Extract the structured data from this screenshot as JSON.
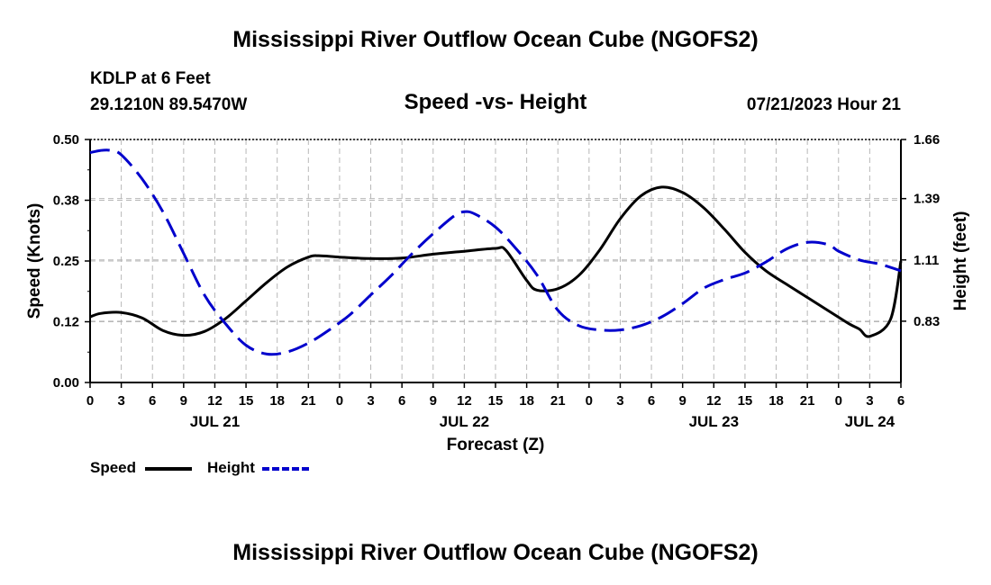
{
  "header": {
    "title": "Mississippi River Outflow Ocean Cube (NGOFS2)",
    "station": "KDLP at 6 Feet",
    "coords": "29.1210N  89.5470W",
    "subtitle": "Speed -vs- Height",
    "datetime": "07/21/2023 Hour 21"
  },
  "legend": {
    "speed_label": "Speed",
    "height_label": "Height"
  },
  "footer": {
    "title": "Mississippi River Outflow Ocean Cube (NGOFS2)"
  },
  "chart_data": {
    "type": "line",
    "xlabel": "Forecast (Z)",
    "ylabel": "Speed (Knots)",
    "y2label": "Height (feet)",
    "x_range": [
      0,
      78
    ],
    "xticks": [
      0,
      3,
      6,
      9,
      12,
      15,
      18,
      21,
      24,
      27,
      30,
      33,
      36,
      39,
      42,
      45,
      48,
      51,
      54,
      57,
      60,
      63,
      66,
      69,
      72,
      75,
      78
    ],
    "xtick_labels": [
      "0",
      "3",
      "6",
      "9",
      "12",
      "15",
      "18",
      "21",
      "0",
      "3",
      "6",
      "9",
      "12",
      "15",
      "18",
      "21",
      "0",
      "3",
      "6",
      "9",
      "12",
      "15",
      "18",
      "21",
      "0",
      "3",
      "6"
    ],
    "date_labels": [
      {
        "x": 12,
        "label": "JUL 21"
      },
      {
        "x": 36,
        "label": "JUL 22"
      },
      {
        "x": 60,
        "label": "JUL 23"
      },
      {
        "x": 75,
        "label": "JUL 24"
      }
    ],
    "y_range": [
      0,
      0.5
    ],
    "yticks": [
      0,
      0.125,
      0.25,
      0.375,
      0.5
    ],
    "ytick_labels": [
      "0.00",
      "0.12",
      "0.25",
      "0.38",
      "0.50"
    ],
    "y2_range": [
      0.55,
      1.66
    ],
    "y2ticks": [
      0.83,
      1.11,
      1.39,
      1.66
    ],
    "y2tick_labels": [
      "0.83",
      "1.11",
      "1.39",
      "1.66"
    ],
    "grid": true,
    "series": [
      {
        "name": "Speed",
        "axis": "left",
        "color": "#000000",
        "style": "solid",
        "x": [
          0,
          1,
          3,
          5,
          7,
          9,
          11,
          13,
          15,
          17,
          19,
          21,
          22,
          24,
          27,
          30,
          33,
          36,
          39,
          40,
          42,
          43,
          45,
          47,
          49,
          51,
          53,
          55,
          57,
          59,
          61,
          63,
          65,
          67,
          69,
          71,
          73,
          74,
          75,
          77,
          78
        ],
        "y": [
          0.135,
          0.142,
          0.144,
          0.133,
          0.107,
          0.097,
          0.105,
          0.131,
          0.168,
          0.206,
          0.238,
          0.258,
          0.261,
          0.258,
          0.255,
          0.256,
          0.264,
          0.27,
          0.276,
          0.272,
          0.21,
          0.19,
          0.193,
          0.22,
          0.272,
          0.337,
          0.384,
          0.402,
          0.391,
          0.36,
          0.316,
          0.268,
          0.23,
          0.202,
          0.175,
          0.148,
          0.121,
          0.11,
          0.095,
          0.13,
          0.25
        ]
      },
      {
        "name": "Height",
        "axis": "right",
        "color": "#0000cc",
        "style": "dashed",
        "x": [
          0,
          1,
          2,
          3,
          5,
          7,
          9,
          11,
          13,
          15,
          17,
          19,
          21,
          23,
          25,
          27,
          29,
          31,
          33,
          35,
          36,
          37,
          39,
          41,
          43,
          45,
          47,
          49,
          51,
          53,
          55,
          57,
          59,
          61,
          63,
          65,
          67,
          69,
          71,
          72,
          74,
          76,
          78
        ],
        "y": [
          1.6,
          1.61,
          1.61,
          1.59,
          1.48,
          1.33,
          1.14,
          0.95,
          0.82,
          0.72,
          0.68,
          0.69,
          0.73,
          0.79,
          0.86,
          0.95,
          1.04,
          1.14,
          1.23,
          1.31,
          1.33,
          1.32,
          1.26,
          1.16,
          1.04,
          0.88,
          0.81,
          0.79,
          0.79,
          0.81,
          0.85,
          0.91,
          0.98,
          1.02,
          1.05,
          1.1,
          1.16,
          1.19,
          1.18,
          1.15,
          1.11,
          1.09,
          1.06
        ]
      }
    ]
  }
}
